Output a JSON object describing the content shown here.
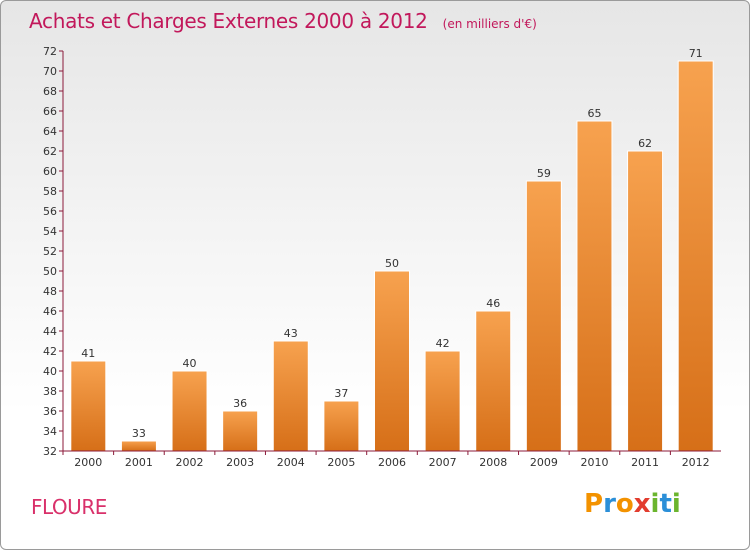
{
  "header": {
    "title": "Achats et Charges Externes 2000 à 2012",
    "unit": "(en milliers d'€)"
  },
  "footer": {
    "town": "FLOURE",
    "brand": [
      "P",
      "r",
      "o",
      "x",
      "i",
      "t",
      "i"
    ],
    "brand_colors": [
      "#f39200",
      "#2b8fd8",
      "#f39200",
      "#e23c2e",
      "#6bb52e",
      "#2b8fd8",
      "#6bb52e"
    ]
  },
  "colors": {
    "bar_top": "#f7a24f",
    "bar_bottom": "#d66f18",
    "bar_stroke": "#ffffff",
    "axis": "#8b1a3a",
    "title": "#c2185b"
  },
  "chart_data": {
    "type": "bar",
    "title": "Achats et Charges Externes 2000 à 2012",
    "subtitle": "(en milliers d'€)",
    "categories": [
      "2000",
      "2001",
      "2002",
      "2003",
      "2004",
      "2005",
      "2006",
      "2007",
      "2008",
      "2009",
      "2010",
      "2011",
      "2012"
    ],
    "values": [
      41,
      33,
      40,
      36,
      43,
      37,
      50,
      42,
      46,
      59,
      65,
      62,
      71
    ],
    "ylim": [
      32,
      72
    ],
    "yticks": [
      32,
      34,
      36,
      38,
      40,
      42,
      44,
      46,
      48,
      50,
      52,
      54,
      56,
      58,
      60,
      62,
      64,
      66,
      68,
      70,
      72
    ],
    "grid": false,
    "data_labels": true
  }
}
